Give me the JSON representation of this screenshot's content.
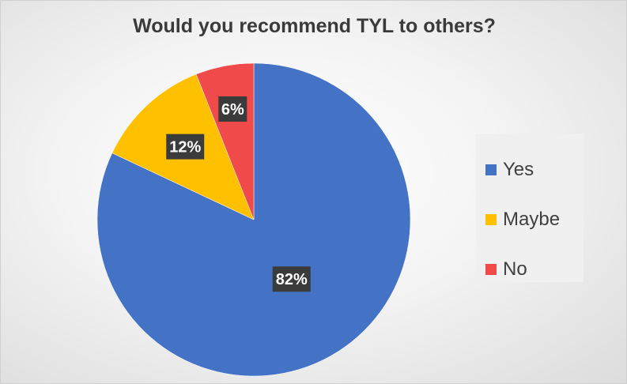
{
  "chart_data": {
    "type": "pie",
    "title": "Would you recommend TYL to others?",
    "categories": [
      "Yes",
      "Maybe",
      "No"
    ],
    "values": [
      82,
      12,
      6
    ],
    "data_labels": [
      "82%",
      "12%",
      "6%"
    ],
    "colors": [
      "#4472c4",
      "#ffc000",
      "#f04a4a"
    ],
    "legend_position": "right",
    "start_angle": "12 o'clock, clockwise"
  }
}
